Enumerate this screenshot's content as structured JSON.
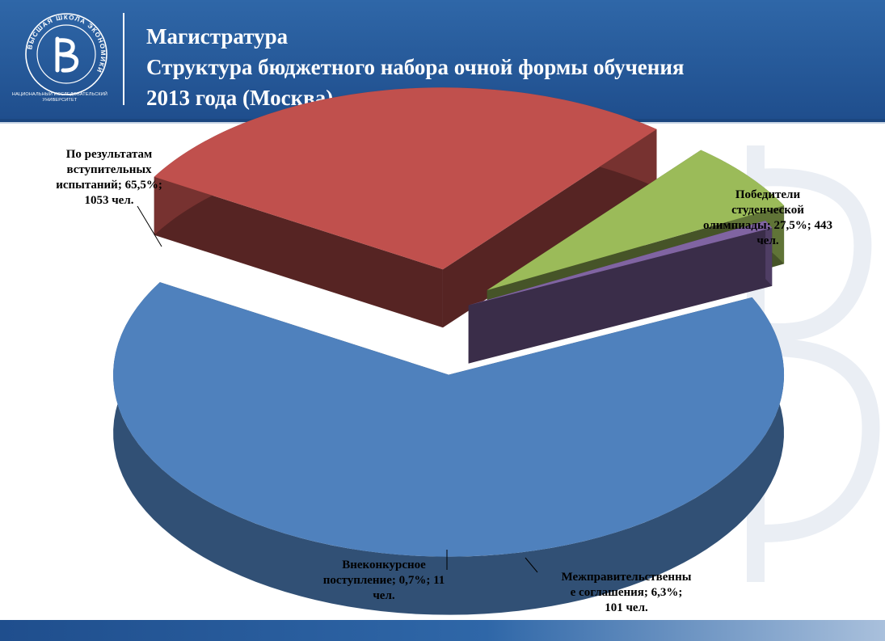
{
  "header": {
    "title_lines": [
      "Магистратура",
      "Структура бюджетного набора очной формы обучения",
      "2013 года (Москва)"
    ],
    "logo_caption_lines": [
      "НАЦИОНАЛЬНЫЙ ИССЛЕДОВАТЕЛЬСКИЙ",
      "УНИВЕРСИТЕТ"
    ],
    "logo_ring_text": "ВЫСШАЯ ШКОЛА ЭКОНОМИКИ"
  },
  "colors": {
    "header_bg": "#2f67a8",
    "entrance": "#4f81bd",
    "olympiad": "#c0504d",
    "intergov": "#9bbb59",
    "extra": "#8064a2"
  },
  "chart_data": {
    "type": "pie",
    "style": "3d-exploded",
    "unit": "чел.",
    "slices": [
      {
        "key": "entrance",
        "label": "По результатам вступительных испытаний",
        "percent": 65.5,
        "count": 1053,
        "label_lines": [
          "По результатам",
          "вступительных",
          "испытаний;  65,5%;",
          "1053 чел."
        ]
      },
      {
        "key": "olympiad",
        "label": "Победители студенческой олимпиады",
        "percent": 27.5,
        "count": 443,
        "label_lines": [
          "Победители",
          "студенческой",
          "олимпиады;  27,5%;  443",
          "чел."
        ]
      },
      {
        "key": "intergov",
        "label": "Межправительственные соглашения",
        "percent": 6.3,
        "count": 101,
        "label_lines": [
          "Межправительственны",
          "е соглашения;  6,3%;",
          "101 чел."
        ]
      },
      {
        "key": "extra",
        "label": "Внеконкурсное поступление",
        "percent": 0.7,
        "count": 11,
        "label_lines": [
          "Внеконкурсное",
          "поступление;  0,7%;  11",
          "чел."
        ]
      }
    ]
  }
}
